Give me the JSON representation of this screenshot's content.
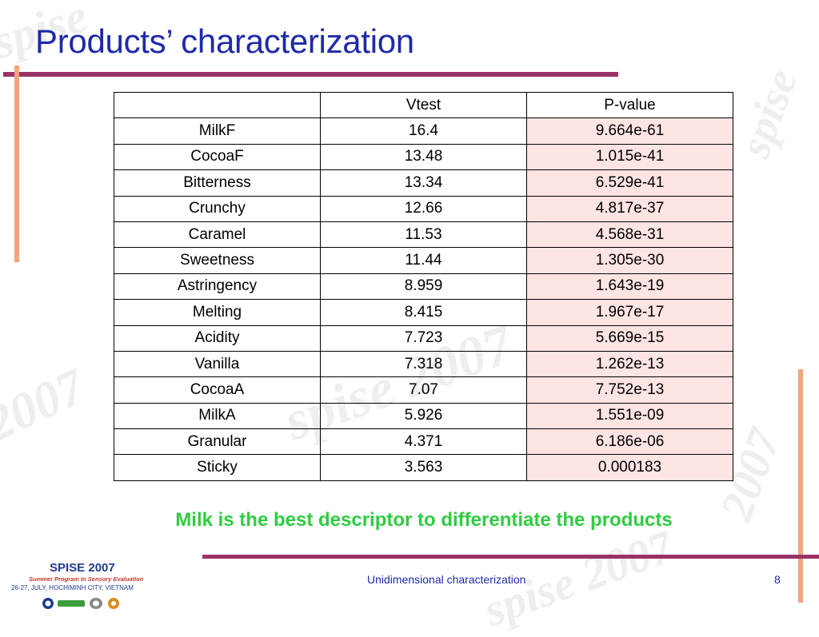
{
  "slide": {
    "title": "Products’ characterization",
    "conclusion": "Milk is the best descriptor to differentiate the products",
    "footer": "Unidimensional characterization",
    "page_number": "8",
    "accent_color": "#993366",
    "title_color": "#1f2aa8",
    "conclusion_color": "#2ecc40"
  },
  "logo": {
    "name": "SPISE 2007",
    "subtitle": "Summer Program In Sensory Evaluation",
    "dates": "26-27, JULY, HOCHIMINH CITY, VIETNAM"
  },
  "table": {
    "headers": [
      "",
      "Vtest",
      "P-value"
    ],
    "rows": [
      {
        "label": "MilkF",
        "vtest": "16.4",
        "pvalue": "9.664e-61"
      },
      {
        "label": "CocoaF",
        "vtest": "13.48",
        "pvalue": "1.015e-41"
      },
      {
        "label": "Bitterness",
        "vtest": "13.34",
        "pvalue": "6.529e-41"
      },
      {
        "label": "Crunchy",
        "vtest": "12.66",
        "pvalue": "4.817e-37"
      },
      {
        "label": "Caramel",
        "vtest": "11.53",
        "pvalue": "4.568e-31"
      },
      {
        "label": "Sweetness",
        "vtest": "11.44",
        "pvalue": "1.305e-30"
      },
      {
        "label": "Astringency",
        "vtest": "8.959",
        "pvalue": "1.643e-19"
      },
      {
        "label": "Melting",
        "vtest": "8.415",
        "pvalue": "1.967e-17"
      },
      {
        "label": "Acidity",
        "vtest": "7.723",
        "pvalue": "5.669e-15"
      },
      {
        "label": "Vanilla",
        "vtest": "7.318",
        "pvalue": "1.262e-13"
      },
      {
        "label": "CocoaA",
        "vtest": "7.07",
        "pvalue": "7.752e-13"
      },
      {
        "label": "MilkA",
        "vtest": "5.926",
        "pvalue": "1.551e-09"
      },
      {
        "label": "Granular",
        "vtest": "4.371",
        "pvalue": "6.186e-06"
      },
      {
        "label": "Sticky",
        "vtest": "3.563",
        "pvalue": "0.000183"
      }
    ]
  }
}
